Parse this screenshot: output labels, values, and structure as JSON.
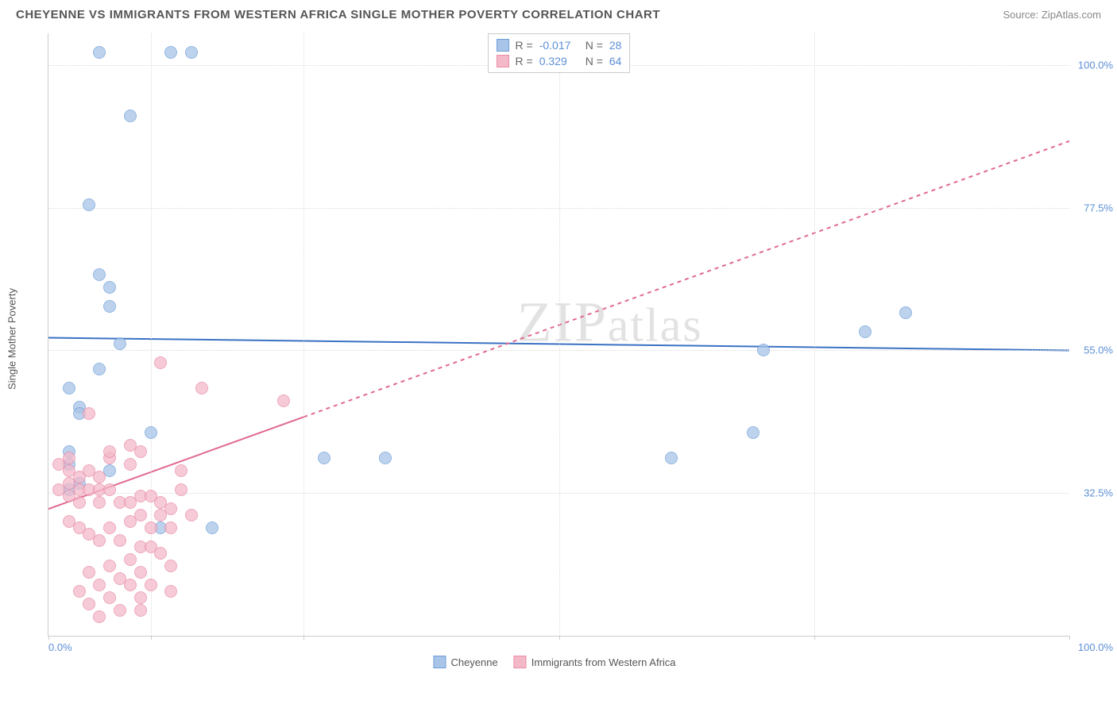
{
  "header": {
    "title": "CHEYENNE VS IMMIGRANTS FROM WESTERN AFRICA SINGLE MOTHER POVERTY CORRELATION CHART",
    "source": "Source: ZipAtlas.com"
  },
  "watermark": "ZIPatlas",
  "chart": {
    "type": "scatter",
    "y_label": "Single Mother Poverty",
    "xlim": [
      0,
      100
    ],
    "ylim": [
      10,
      105
    ],
    "y_ticks": [
      32.5,
      55.0,
      77.5,
      100.0
    ],
    "y_tick_labels": [
      "32.5%",
      "55.0%",
      "77.5%",
      "100.0%"
    ],
    "x_ticks": [
      0,
      10,
      25,
      50,
      75,
      100
    ],
    "x_tick_labels_ends": [
      "0.0%",
      "100.0%"
    ],
    "background_color": "#ffffff",
    "grid_color": "#dddddd",
    "point_radius": 8,
    "series": [
      {
        "name": "Cheyenne",
        "fill": "#a8c4e8",
        "stroke": "#6f9fd8",
        "opacity": 0.75,
        "R": "-0.017",
        "N": "28",
        "trend": {
          "y_at_x0": 57,
          "y_at_x100": 55,
          "color": "#3b72c4",
          "width": 2,
          "dash": "none"
        },
        "points": [
          [
            5,
            102
          ],
          [
            12,
            102
          ],
          [
            14,
            102
          ],
          [
            8,
            92
          ],
          [
            4,
            78
          ],
          [
            5,
            67
          ],
          [
            6,
            65
          ],
          [
            6,
            62
          ],
          [
            7,
            56
          ],
          [
            5,
            52
          ],
          [
            2,
            49
          ],
          [
            3,
            46
          ],
          [
            3,
            45
          ],
          [
            10,
            42
          ],
          [
            2,
            39
          ],
          [
            2,
            37
          ],
          [
            6,
            36
          ],
          [
            27,
            38
          ],
          [
            33,
            38
          ],
          [
            61,
            38
          ],
          [
            69,
            42
          ],
          [
            70,
            55
          ],
          [
            80,
            58
          ],
          [
            84,
            61
          ],
          [
            11,
            27
          ],
          [
            16,
            27
          ],
          [
            3,
            34
          ],
          [
            2,
            33
          ]
        ]
      },
      {
        "name": "Immigrants from Western Africa",
        "fill": "#f4b9c9",
        "stroke": "#e88ba6",
        "opacity": 0.75,
        "R": "0.329",
        "N": "64",
        "trend": {
          "y_at_x0": 30,
          "y_at_x100": 88,
          "solid_until_x": 25,
          "color": "#e06a8e",
          "width": 2,
          "dash": "5,5"
        },
        "points": [
          [
            11,
            53
          ],
          [
            15,
            49
          ],
          [
            23,
            47
          ],
          [
            4,
            45
          ],
          [
            6,
            38
          ],
          [
            8,
            40
          ],
          [
            9,
            39
          ],
          [
            8,
            37
          ],
          [
            6,
            39
          ],
          [
            2,
            38
          ],
          [
            1,
            37
          ],
          [
            2,
            36
          ],
          [
            3,
            35
          ],
          [
            4,
            36
          ],
          [
            5,
            35
          ],
          [
            2,
            34
          ],
          [
            1,
            33
          ],
          [
            3,
            33
          ],
          [
            4,
            33
          ],
          [
            5,
            33
          ],
          [
            6,
            33
          ],
          [
            2,
            32
          ],
          [
            3,
            31
          ],
          [
            5,
            31
          ],
          [
            7,
            31
          ],
          [
            8,
            31
          ],
          [
            9,
            32
          ],
          [
            10,
            32
          ],
          [
            11,
            31
          ],
          [
            12,
            30
          ],
          [
            13,
            33
          ],
          [
            9,
            29
          ],
          [
            11,
            29
          ],
          [
            8,
            28
          ],
          [
            6,
            27
          ],
          [
            10,
            27
          ],
          [
            12,
            27
          ],
          [
            2,
            28
          ],
          [
            3,
            27
          ],
          [
            4,
            26
          ],
          [
            5,
            25
          ],
          [
            7,
            25
          ],
          [
            9,
            24
          ],
          [
            10,
            24
          ],
          [
            11,
            23
          ],
          [
            8,
            22
          ],
          [
            6,
            21
          ],
          [
            4,
            20
          ],
          [
            9,
            20
          ],
          [
            12,
            21
          ],
          [
            7,
            19
          ],
          [
            5,
            18
          ],
          [
            8,
            18
          ],
          [
            10,
            18
          ],
          [
            3,
            17
          ],
          [
            6,
            16
          ],
          [
            9,
            16
          ],
          [
            4,
            15
          ],
          [
            7,
            14
          ],
          [
            5,
            13
          ],
          [
            9,
            14
          ],
          [
            12,
            17
          ],
          [
            14,
            29
          ],
          [
            13,
            36
          ]
        ]
      }
    ],
    "legend_top": {
      "rows": [
        {
          "swatch_fill": "#a8c4e8",
          "swatch_stroke": "#6f9fd8",
          "r_label": "R =",
          "r_val": "-0.017",
          "n_label": "N =",
          "n_val": "28"
        },
        {
          "swatch_fill": "#f4b9c9",
          "swatch_stroke": "#e88ba6",
          "r_label": "R =",
          "r_val": "0.329",
          "n_label": "N =",
          "n_val": "64"
        }
      ]
    },
    "legend_bottom": [
      {
        "swatch_fill": "#a8c4e8",
        "swatch_stroke": "#6f9fd8",
        "label": "Cheyenne"
      },
      {
        "swatch_fill": "#f4b9c9",
        "swatch_stroke": "#e88ba6",
        "label": "Immigrants from Western Africa"
      }
    ]
  }
}
